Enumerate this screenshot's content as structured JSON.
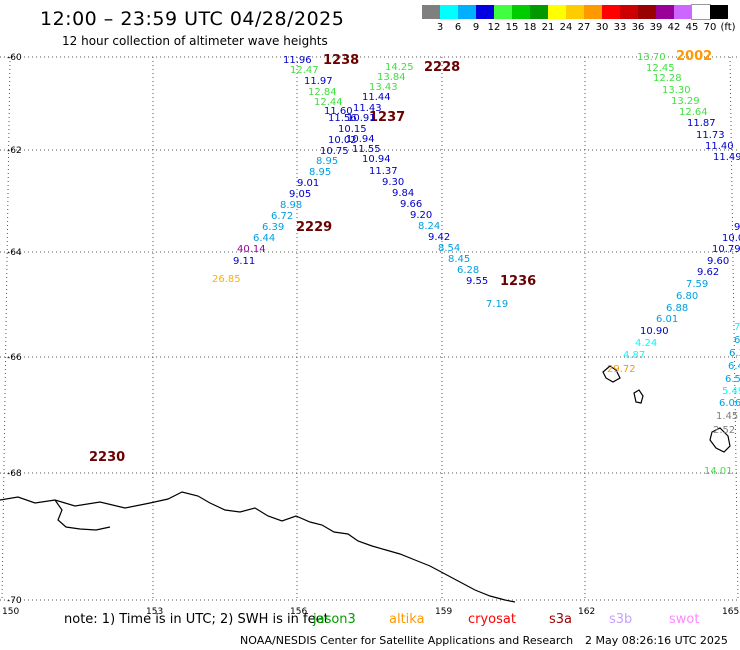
{
  "header": {
    "title": "12:00 – 23:59 UTC 04/28/2025",
    "subtitle": "12 hour collection of altimeter wave heights"
  },
  "color_scale": {
    "colors": [
      "#7f7f7f",
      "#00ffff",
      "#00b0ff",
      "#0000e0",
      "#40ff40",
      "#00cc00",
      "#009900",
      "#ffff00",
      "#ffcc00",
      "#ff9900",
      "#ff0000",
      "#cc0000",
      "#990000",
      "#990099",
      "#cc66ff",
      "#ffffff",
      "#000000"
    ],
    "labels": [
      "3",
      "6",
      "9",
      "12",
      "15",
      "18",
      "21",
      "24",
      "27",
      "30",
      "33",
      "36",
      "39",
      "42",
      "45",
      "70",
      "(ft)"
    ]
  },
  "map": {
    "lat_labels": [
      "-60",
      "-62",
      "-64",
      "-66",
      "-68",
      "-70"
    ],
    "lon_labels": [
      "150",
      "153",
      "156",
      "159",
      "162",
      "165"
    ],
    "pass_labels": [
      {
        "text": "1238"
      },
      {
        "text": "2228"
      },
      {
        "text": "1237"
      },
      {
        "text": "2229"
      },
      {
        "text": "1236"
      },
      {
        "text": "2002"
      },
      {
        "text": "2230"
      }
    ],
    "wave_values": [
      {
        "text": "11.96",
        "color": "#0000c8"
      },
      {
        "text": "12.47",
        "color": "#40e040"
      },
      {
        "text": "11.97",
        "color": "#0000c8"
      },
      {
        "text": "12.84",
        "color": "#40e040"
      },
      {
        "text": "12.44",
        "color": "#40e040"
      },
      {
        "text": "11.60",
        "color": "#0000c8"
      },
      {
        "text": "11.56",
        "color": "#0000c8"
      },
      {
        "text": "10.91",
        "color": "#0000c8"
      },
      {
        "text": "10.15",
        "color": "#0000c8"
      },
      {
        "text": "10.02",
        "color": "#0000c8"
      },
      {
        "text": "10.94",
        "color": "#0000c8"
      },
      {
        "text": "10.75",
        "color": "#0000c8"
      },
      {
        "text": "11.55",
        "color": "#0000c8"
      },
      {
        "text": "8.95",
        "color": "#00a0e0"
      },
      {
        "text": "10.94",
        "color": "#0000c8"
      },
      {
        "text": "8.95",
        "color": "#00a0e0"
      },
      {
        "text": "11.37",
        "color": "#0000c8"
      },
      {
        "text": "9.01",
        "color": "#0000c8"
      },
      {
        "text": "9.30",
        "color": "#0000c8"
      },
      {
        "text": "9.05",
        "color": "#0000c8"
      },
      {
        "text": "9.84",
        "color": "#0000c8"
      },
      {
        "text": "8.98",
        "color": "#00a0e0"
      },
      {
        "text": "9.66",
        "color": "#0000c8"
      },
      {
        "text": "6.72",
        "color": "#00a0e0"
      },
      {
        "text": "9.20",
        "color": "#0000c8"
      },
      {
        "text": "6.39",
        "color": "#00a0e0"
      },
      {
        "text": "8.24",
        "color": "#00a0e0"
      },
      {
        "text": "6.44",
        "color": "#00a0e0"
      },
      {
        "text": "9.42",
        "color": "#0000c8"
      },
      {
        "text": "40.14",
        "color": "#990099"
      },
      {
        "text": "8.54",
        "color": "#00a0e0"
      },
      {
        "text": "9.11",
        "color": "#0000c8"
      },
      {
        "text": "8.45",
        "color": "#00a0e0"
      },
      {
        "text": "6.28",
        "color": "#00a0e0"
      },
      {
        "text": "26.85",
        "color": "#ffb000"
      },
      {
        "text": "9.55",
        "color": "#0000c8"
      },
      {
        "text": "7.19",
        "color": "#00a0e0"
      },
      {
        "text": "14.25",
        "color": "#40e040"
      },
      {
        "text": "13.84",
        "color": "#40e040"
      },
      {
        "text": "13.43",
        "color": "#40e040"
      },
      {
        "text": "11.44",
        "color": "#0000c8"
      },
      {
        "text": "11.43",
        "color": "#0000c8"
      },
      {
        "text": "13.70",
        "color": "#40e040"
      },
      {
        "text": "12.45",
        "color": "#40e040"
      },
      {
        "text": "12.28",
        "color": "#40e040"
      },
      {
        "text": "13.30",
        "color": "#40e040"
      },
      {
        "text": "13.29",
        "color": "#40e040"
      },
      {
        "text": "12.64",
        "color": "#40e040"
      },
      {
        "text": "11.87",
        "color": "#0000c8"
      },
      {
        "text": "11.73",
        "color": "#0000c8"
      },
      {
        "text": "11.40",
        "color": "#0000c8"
      },
      {
        "text": "11.49",
        "color": "#0000c8"
      },
      {
        "text": "9",
        "color": "#0000c8"
      },
      {
        "text": "10.0",
        "color": "#0000c8"
      },
      {
        "text": "10.79",
        "color": "#0000c8"
      },
      {
        "text": "9.60",
        "color": "#0000c8"
      },
      {
        "text": "9.62",
        "color": "#0000c8"
      },
      {
        "text": "7.59",
        "color": "#00a0e0"
      },
      {
        "text": "6.80",
        "color": "#00a0e0"
      },
      {
        "text": "6.88",
        "color": "#00a0e0"
      },
      {
        "text": "6.01",
        "color": "#00a0e0"
      },
      {
        "text": "10.90",
        "color": "#0000c8"
      },
      {
        "text": "4.24",
        "color": "#00ffff"
      },
      {
        "text": "4.87",
        "color": "#00ffff"
      },
      {
        "text": "29.72",
        "color": "#ff9900"
      },
      {
        "text": "7",
        "color": "#00ffff"
      },
      {
        "text": "6",
        "color": "#00a0e0"
      },
      {
        "text": "6.3",
        "color": "#00a0e0"
      },
      {
        "text": "6.4",
        "color": "#00a0e0"
      },
      {
        "text": "6.5",
        "color": "#00a0e0"
      },
      {
        "text": "5.49",
        "color": "#00ffff"
      },
      {
        "text": "6.06",
        "color": "#00a0e0"
      },
      {
        "text": "1.45",
        "color": "#7f7f7f"
      },
      {
        "text": "2.52",
        "color": "#7f7f7f"
      },
      {
        "text": "14.01",
        "color": "#40e040"
      }
    ]
  },
  "footer": {
    "note": "note: 1) Time is in UTC; 2) SWH is in feet",
    "satellites": [
      {
        "name": "jason3",
        "color": "#00a000"
      },
      {
        "name": "altika",
        "color": "#ff9900"
      },
      {
        "name": "cryosat",
        "color": "#ff0000"
      },
      {
        "name": "s3a",
        "color": "#990000"
      },
      {
        "name": "s3b",
        "color": "#c8a0ff"
      },
      {
        "name": "swot",
        "color": "#ff88ff"
      }
    ],
    "credit": "NOAA/NESDIS Center for Satellite Applications and Research",
    "timestamp": "2 May 08:26:16 UTC 2025"
  }
}
